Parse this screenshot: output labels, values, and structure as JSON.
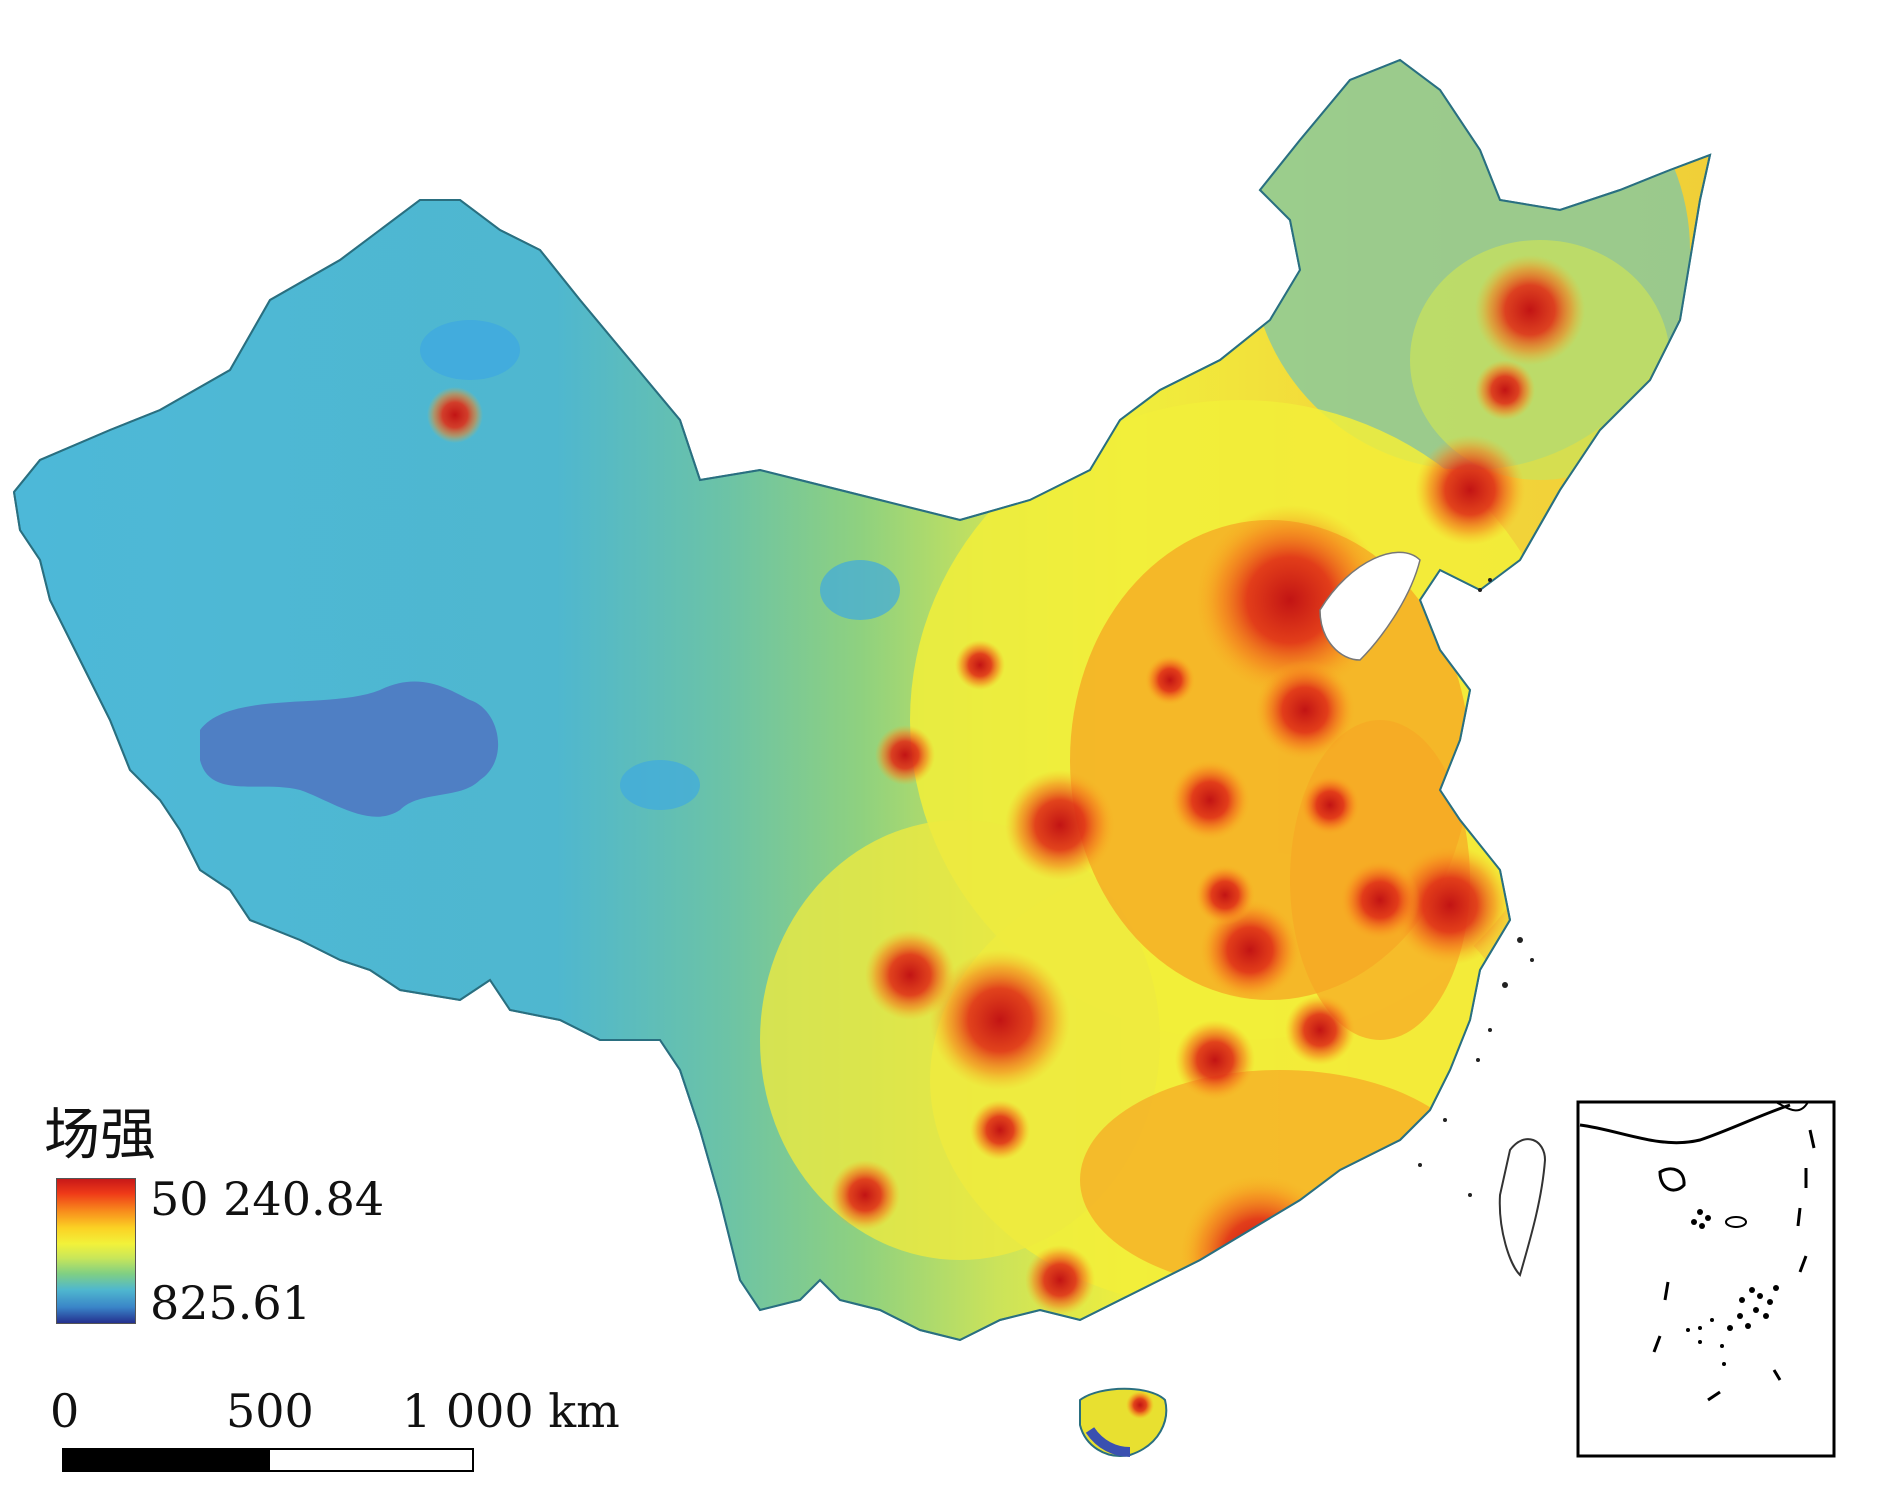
{
  "legend": {
    "title": "场强",
    "max_label": "50 240.84",
    "min_label": "825.61",
    "max_value": 50240.84,
    "min_value": 825.61,
    "colors": [
      "#c81818",
      "#ef3a18",
      "#f88a1c",
      "#fbd224",
      "#f2f23a",
      "#c8e65a",
      "#7fcf84",
      "#4fb7cf",
      "#3a85c8",
      "#24308e"
    ]
  },
  "scale_bar": {
    "labels": [
      "0",
      "500",
      "1 000 km"
    ]
  },
  "map_colors": {
    "west_base": "#4db8d8",
    "low_area": "#4f7fc4",
    "mid": "#78c89a",
    "transition": "#b9df66",
    "yellow": "#f2ef3a",
    "orange": "#f6a623",
    "red": "#d41c18"
  },
  "inset": {
    "description_icon": "south-china-sea-inset-icon"
  }
}
